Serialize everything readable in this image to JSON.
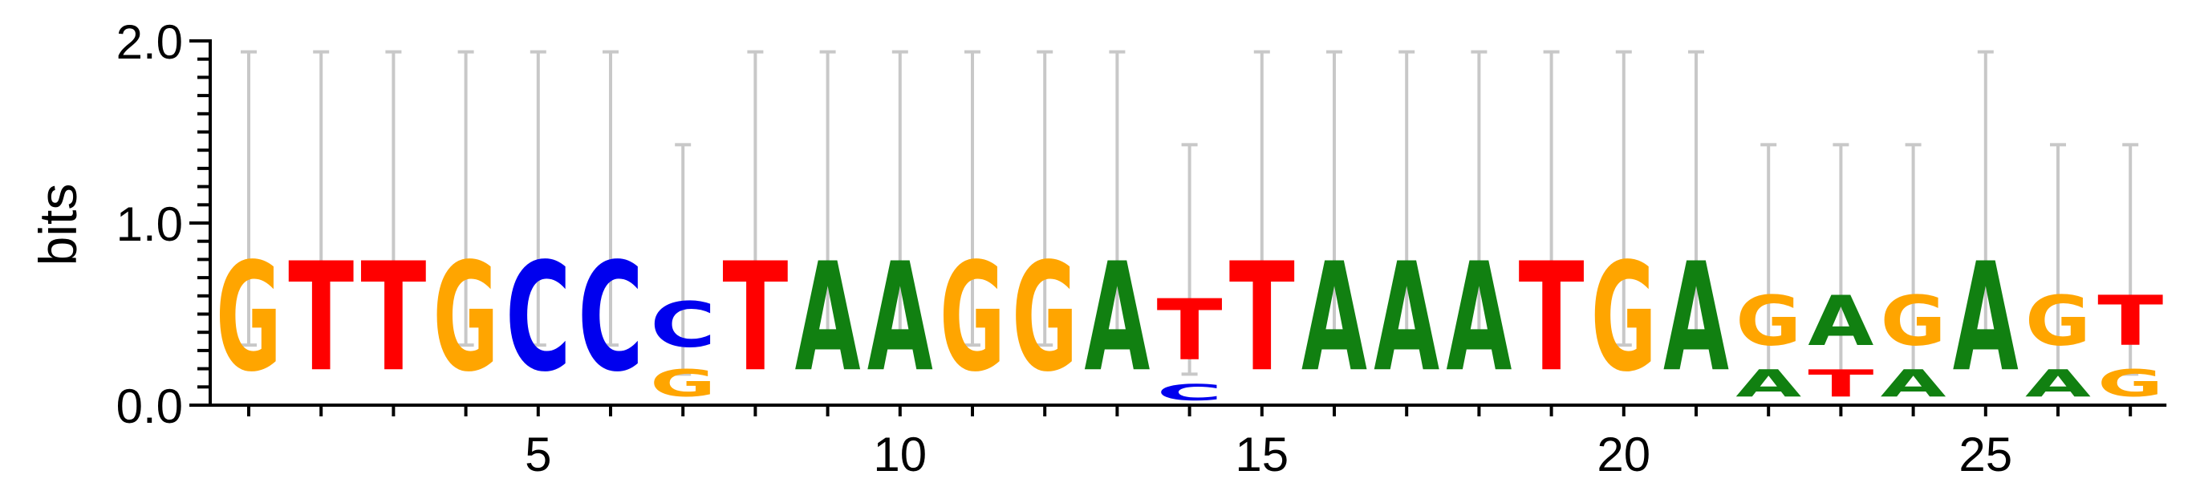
{
  "chart_data": {
    "type": "sequence-logo",
    "ylabel": "bits",
    "ylim": [
      0,
      2.0
    ],
    "yticks_labeled": [
      "0.0",
      "1.0",
      "2.0"
    ],
    "xticks_labeled": [
      5,
      10,
      15,
      20,
      25
    ],
    "positions": 27,
    "colors": {
      "A": "#118011",
      "C": "#0000ee",
      "G": "#ffa500",
      "T": "#ff0000",
      "error_bar": "#c8c8c8"
    },
    "columns": [
      {
        "pos": 1,
        "stack": [
          {
            "letter": "G",
            "bits": 0.96
          }
        ],
        "err": [
          0.33,
          1.94
        ]
      },
      {
        "pos": 2,
        "stack": [
          {
            "letter": "T",
            "bits": 0.96
          }
        ],
        "err": [
          0.33,
          1.94
        ]
      },
      {
        "pos": 3,
        "stack": [
          {
            "letter": "T",
            "bits": 0.96
          }
        ],
        "err": [
          0.33,
          1.94
        ]
      },
      {
        "pos": 4,
        "stack": [
          {
            "letter": "G",
            "bits": 0.96
          }
        ],
        "err": [
          0.33,
          1.94
        ]
      },
      {
        "pos": 5,
        "stack": [
          {
            "letter": "C",
            "bits": 0.96
          }
        ],
        "err": [
          0.33,
          1.94
        ]
      },
      {
        "pos": 6,
        "stack": [
          {
            "letter": "C",
            "bits": 0.96
          }
        ],
        "err": [
          0.33,
          1.94
        ]
      },
      {
        "pos": 7,
        "stack": [
          {
            "letter": "G",
            "bits": 0.24
          },
          {
            "letter": "C",
            "bits": 0.4
          }
        ],
        "err": [
          0.17,
          1.43
        ]
      },
      {
        "pos": 8,
        "stack": [
          {
            "letter": "T",
            "bits": 0.96
          }
        ],
        "err": [
          0.33,
          1.94
        ]
      },
      {
        "pos": 9,
        "stack": [
          {
            "letter": "A",
            "bits": 0.96
          }
        ],
        "err": [
          0.33,
          1.94
        ]
      },
      {
        "pos": 10,
        "stack": [
          {
            "letter": "A",
            "bits": 0.96
          }
        ],
        "err": [
          0.33,
          1.94
        ]
      },
      {
        "pos": 11,
        "stack": [
          {
            "letter": "G",
            "bits": 0.96
          }
        ],
        "err": [
          0.33,
          1.94
        ]
      },
      {
        "pos": 12,
        "stack": [
          {
            "letter": "G",
            "bits": 0.96
          }
        ],
        "err": [
          0.33,
          1.94
        ]
      },
      {
        "pos": 13,
        "stack": [
          {
            "letter": "A",
            "bits": 0.96
          }
        ],
        "err": [
          0.33,
          1.94
        ]
      },
      {
        "pos": 14,
        "stack": [
          {
            "letter": "C",
            "bits": 0.14
          },
          {
            "letter": "T",
            "bits": 0.54
          }
        ],
        "err": [
          0.17,
          1.43
        ]
      },
      {
        "pos": 15,
        "stack": [
          {
            "letter": "T",
            "bits": 0.96
          }
        ],
        "err": [
          0.33,
          1.94
        ]
      },
      {
        "pos": 16,
        "stack": [
          {
            "letter": "A",
            "bits": 0.96
          }
        ],
        "err": [
          0.33,
          1.94
        ]
      },
      {
        "pos": 17,
        "stack": [
          {
            "letter": "A",
            "bits": 0.96
          }
        ],
        "err": [
          0.33,
          1.94
        ]
      },
      {
        "pos": 18,
        "stack": [
          {
            "letter": "A",
            "bits": 0.96
          }
        ],
        "err": [
          0.33,
          1.94
        ]
      },
      {
        "pos": 19,
        "stack": [
          {
            "letter": "T",
            "bits": 0.96
          }
        ],
        "err": [
          0.33,
          1.94
        ]
      },
      {
        "pos": 20,
        "stack": [
          {
            "letter": "G",
            "bits": 0.96
          }
        ],
        "err": [
          0.33,
          1.94
        ]
      },
      {
        "pos": 21,
        "stack": [
          {
            "letter": "A",
            "bits": 0.96
          }
        ],
        "err": [
          0.33,
          1.94
        ]
      },
      {
        "pos": 22,
        "stack": [
          {
            "letter": "A",
            "bits": 0.24
          },
          {
            "letter": "G",
            "bits": 0.44
          }
        ],
        "err": [
          0.17,
          1.43
        ]
      },
      {
        "pos": 23,
        "stack": [
          {
            "letter": "T",
            "bits": 0.24
          },
          {
            "letter": "A",
            "bits": 0.44
          }
        ],
        "err": [
          0.17,
          1.43
        ]
      },
      {
        "pos": 24,
        "stack": [
          {
            "letter": "A",
            "bits": 0.24
          },
          {
            "letter": "G",
            "bits": 0.44
          }
        ],
        "err": [
          0.17,
          1.43
        ]
      },
      {
        "pos": 25,
        "stack": [
          {
            "letter": "A",
            "bits": 0.96
          }
        ],
        "err": [
          0.33,
          1.94
        ]
      },
      {
        "pos": 26,
        "stack": [
          {
            "letter": "A",
            "bits": 0.24
          },
          {
            "letter": "G",
            "bits": 0.44
          }
        ],
        "err": [
          0.17,
          1.43
        ]
      },
      {
        "pos": 27,
        "stack": [
          {
            "letter": "G",
            "bits": 0.24
          },
          {
            "letter": "T",
            "bits": 0.44
          }
        ],
        "err": [
          0.17,
          1.43
        ]
      }
    ]
  }
}
